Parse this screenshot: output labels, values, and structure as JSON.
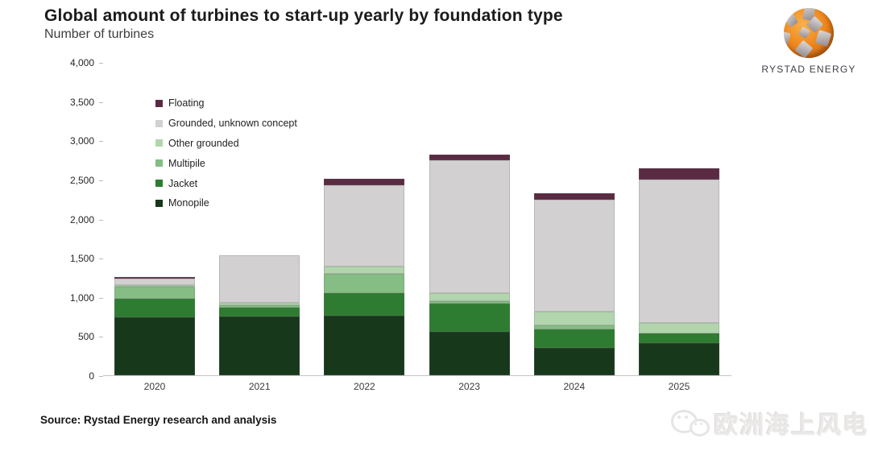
{
  "logo": {
    "icon": "globe-icon",
    "brand": "RYSTAD ENERGY"
  },
  "footer": {
    "source": "Source: Rystad Energy research and analysis",
    "watermark_icon": "wechat-icon",
    "watermark": "欧洲海上风电"
  },
  "chart_data": {
    "type": "bar",
    "stacked": true,
    "title": "Global amount of turbines to start-up yearly by foundation type",
    "subtitle": "Number of turbines",
    "categories": [
      "2020",
      "2021",
      "2022",
      "2023",
      "2024",
      "2025"
    ],
    "series": [
      {
        "name": "Monopile",
        "color": "#17381b",
        "values": [
          740,
          750,
          760,
          555,
          350,
          410
        ]
      },
      {
        "name": "Jacket",
        "color": "#2e7c31",
        "values": [
          235,
          110,
          290,
          360,
          235,
          130
        ]
      },
      {
        "name": "Multipile",
        "color": "#85bd84",
        "values": [
          160,
          35,
          245,
          35,
          50,
          0
        ]
      },
      {
        "name": "Other grounded",
        "color": "#b2d5ae",
        "values": [
          15,
          30,
          90,
          100,
          175,
          125
        ]
      },
      {
        "name": "Grounded, unknown concept",
        "color": "#d2d0d1",
        "values": [
          85,
          605,
          1040,
          1700,
          1430,
          1830
        ]
      },
      {
        "name": "Floating",
        "color": "#5a2a43",
        "values": [
          20,
          0,
          80,
          70,
          85,
          145
        ]
      }
    ],
    "ylim": [
      0,
      4000
    ],
    "yticks": [
      0,
      500,
      1000,
      1500,
      2000,
      2500,
      3000,
      3500,
      4000
    ],
    "ytick_labels": [
      "0",
      "500",
      "1,000",
      "1,500",
      "2,000",
      "2,500",
      "3,000",
      "3,500",
      "4,000"
    ],
    "grid": false,
    "legend": {
      "position": "upper-left-inside",
      "order_top_to_bottom": [
        "Floating",
        "Grounded, unknown concept",
        "Other grounded",
        "Multipile",
        "Jacket",
        "Monopile"
      ]
    }
  }
}
